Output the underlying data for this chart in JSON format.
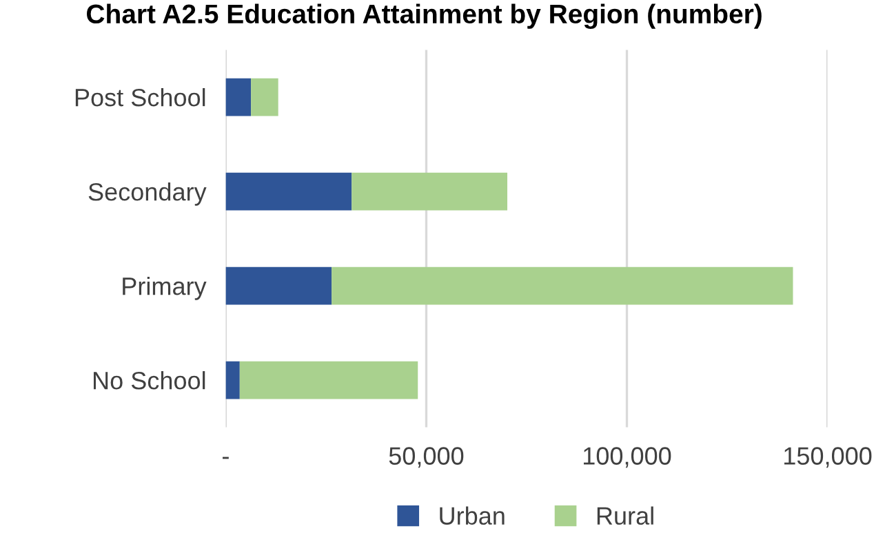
{
  "chart_data": {
    "type": "bar",
    "orientation": "horizontal",
    "stacked": true,
    "title": "Chart A2.5 Education Attainment by Region (number)",
    "categories": [
      "Post School",
      "Secondary",
      "Primary",
      "No School"
    ],
    "series": [
      {
        "name": "Urban",
        "color": "#2f5597",
        "values": [
          6300,
          31400,
          26400,
          3500
        ]
      },
      {
        "name": "Rural",
        "color": "#a9d18e",
        "values": [
          6800,
          38800,
          115000,
          44400
        ]
      }
    ],
    "xlim": [
      0,
      150000
    ],
    "xticks": [
      {
        "value": 0,
        "label": "-"
      },
      {
        "value": 50000,
        "label": "50,000"
      },
      {
        "value": 100000,
        "label": "100,000"
      },
      {
        "value": 150000,
        "label": "150,000"
      }
    ],
    "grid": "x",
    "legend": "bottom"
  }
}
